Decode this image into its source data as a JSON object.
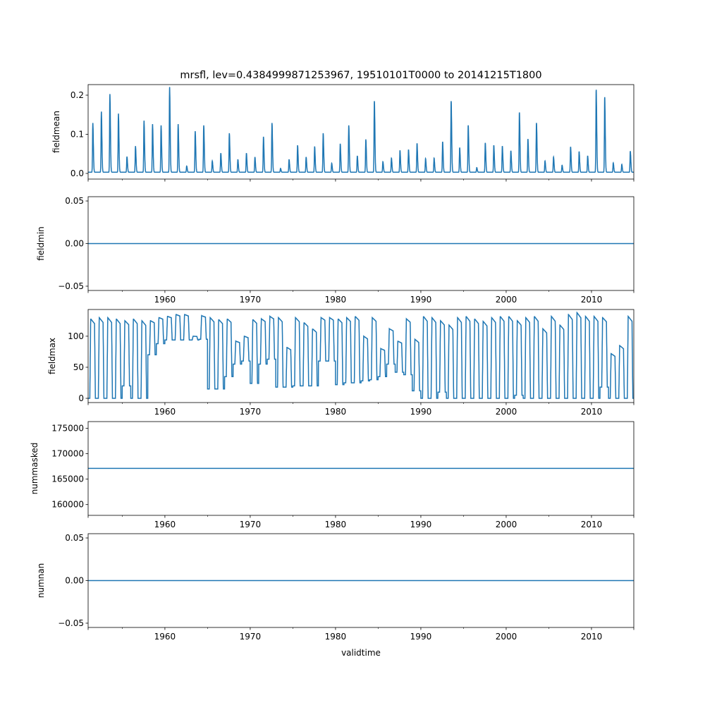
{
  "chart_data": {
    "type": "line",
    "title": "mrsfl, lev=0.4384999871253967, 19510101T0000 to 20141215T1800",
    "xlabel": "validtime",
    "xlim": [
      1951.0,
      2014.96
    ],
    "xticks": [
      1960,
      1970,
      1980,
      1990,
      2000,
      2010
    ],
    "xtick_labels": [
      "1960",
      "1970",
      "1980",
      "1990",
      "2000",
      "2010"
    ],
    "minor_xticks": [
      1955,
      1965,
      1975,
      1985,
      1995,
      2005
    ],
    "line_color": "#1f77b4",
    "years": [
      1951,
      2014
    ],
    "panels": [
      {
        "ylabel": "fieldmean",
        "ylim": [
          -0.0144,
          0.227
        ],
        "yticks": [
          0.0,
          0.1,
          0.2
        ],
        "ytick_labels": [
          "0.0",
          "0.1",
          "0.2"
        ],
        "kind": "annual_peaks",
        "baseline": 0.003,
        "annual_peak_values": [
          0.126,
          0.155,
          0.2,
          0.15,
          0.04,
          0.067,
          0.132,
          0.123,
          0.12,
          0.218,
          0.123,
          0.016,
          0.105,
          0.12,
          0.029,
          0.049,
          0.1,
          0.033,
          0.049,
          0.039,
          0.091,
          0.126,
          0.01,
          0.033,
          0.069,
          0.039,
          0.066,
          0.1,
          0.023,
          0.073,
          0.12,
          0.042,
          0.084,
          0.182,
          0.027,
          0.036,
          0.056,
          0.058,
          0.074,
          0.035,
          0.036,
          0.078,
          0.182,
          0.063,
          0.12,
          0.012,
          0.075,
          0.069,
          0.067,
          0.055,
          0.153,
          0.085,
          0.126,
          0.029,
          0.039,
          0.018,
          0.065,
          0.053,
          0.042,
          0.211,
          0.192,
          0.024,
          0.02,
          0.054
        ]
      },
      {
        "ylabel": "fieldmin",
        "ylim": [
          -0.055,
          0.055
        ],
        "yticks": [
          -0.05,
          0.0,
          0.05
        ],
        "ytick_labels": [
          "−0.05",
          "0.00",
          "0.05"
        ],
        "kind": "constant",
        "value": 0.0
      },
      {
        "ylabel": "fieldmax",
        "ylim": [
          -6.8,
          143
        ],
        "yticks": [
          0,
          50,
          100
        ],
        "ytick_labels": [
          "0",
          "50",
          "100"
        ],
        "kind": "annual_plateau",
        "annual_high": [
          128,
          130,
          130,
          128,
          125,
          128,
          125,
          125,
          130,
          132,
          135,
          135,
          100,
          133,
          130,
          127,
          128,
          92,
          100,
          127,
          128,
          132,
          130,
          82,
          130,
          122,
          112,
          130,
          130,
          128,
          130,
          132,
          100,
          130,
          80,
          112,
          92,
          128,
          95,
          132,
          130,
          125,
          118,
          130,
          132,
          128,
          124,
          130,
          132,
          132,
          125,
          130,
          132,
          112,
          132,
          118,
          135,
          138,
          132,
          132,
          130,
          72,
          85,
          132
        ],
        "annual_low": [
          0,
          0,
          0,
          0,
          20,
          0,
          0,
          70,
          88,
          94,
          94,
          94,
          94,
          95,
          15,
          15,
          35,
          55,
          60,
          24,
          55,
          63,
          18,
          18,
          20,
          20,
          20,
          60,
          60,
          22,
          25,
          25,
          28,
          30,
          35,
          55,
          42,
          38,
          12,
          0,
          0,
          10,
          0,
          0,
          0,
          0,
          0,
          0,
          0,
          0,
          5,
          0,
          0,
          0,
          0,
          0,
          0,
          0,
          0,
          0,
          18,
          0,
          0,
          0
        ]
      },
      {
        "ylabel": "nummasked",
        "ylim": [
          157880,
          176300
        ],
        "yticks": [
          160000,
          165000,
          170000,
          175000
        ],
        "ytick_labels": [
          "160000",
          "165000",
          "170000",
          "175000"
        ],
        "kind": "constant",
        "value": 167100
      },
      {
        "ylabel": "numnan",
        "ylim": [
          -0.055,
          0.055
        ],
        "yticks": [
          -0.05,
          0.0,
          0.05
        ],
        "ytick_labels": [
          "−0.05",
          "0.00",
          "0.05"
        ],
        "kind": "constant",
        "value": 0.0
      }
    ]
  }
}
